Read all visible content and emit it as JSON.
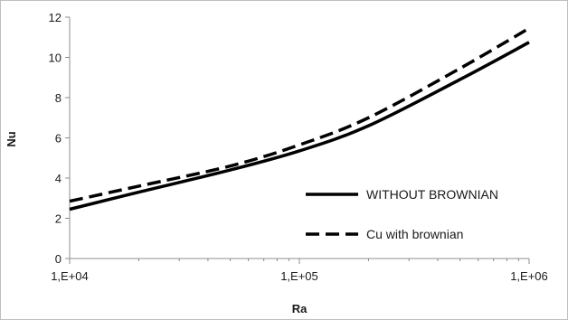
{
  "chart_data": {
    "type": "line",
    "x_scale": "log",
    "x": [
      10000,
      20000,
      50000,
      100000,
      200000,
      500000,
      1000000
    ],
    "xlim": [
      10000,
      1000000
    ],
    "x_ticks": [
      10000,
      100000,
      1000000
    ],
    "x_tick_labels": [
      "1,E+04",
      "1,E+05",
      "1,E+06"
    ],
    "ylim": [
      0,
      12
    ],
    "y_ticks": [
      0,
      2,
      4,
      6,
      8,
      10,
      12
    ],
    "y_tick_labels": [
      "0",
      "2",
      "4",
      "6",
      "8",
      "10",
      "12"
    ],
    "xlabel": "Ra",
    "ylabel": "Nu",
    "grid": false,
    "legend_position": "right",
    "series": [
      {
        "name": "WITHOUT BROWNIAN",
        "style": "solid",
        "color": "#000000",
        "values": [
          2.45,
          3.3,
          4.4,
          5.35,
          6.6,
          8.9,
          10.75
        ]
      },
      {
        "name": "Cu with brownian",
        "style": "dashed",
        "color": "#000000",
        "values": [
          2.85,
          3.6,
          4.6,
          5.65,
          7.0,
          9.45,
          11.45
        ]
      }
    ]
  }
}
